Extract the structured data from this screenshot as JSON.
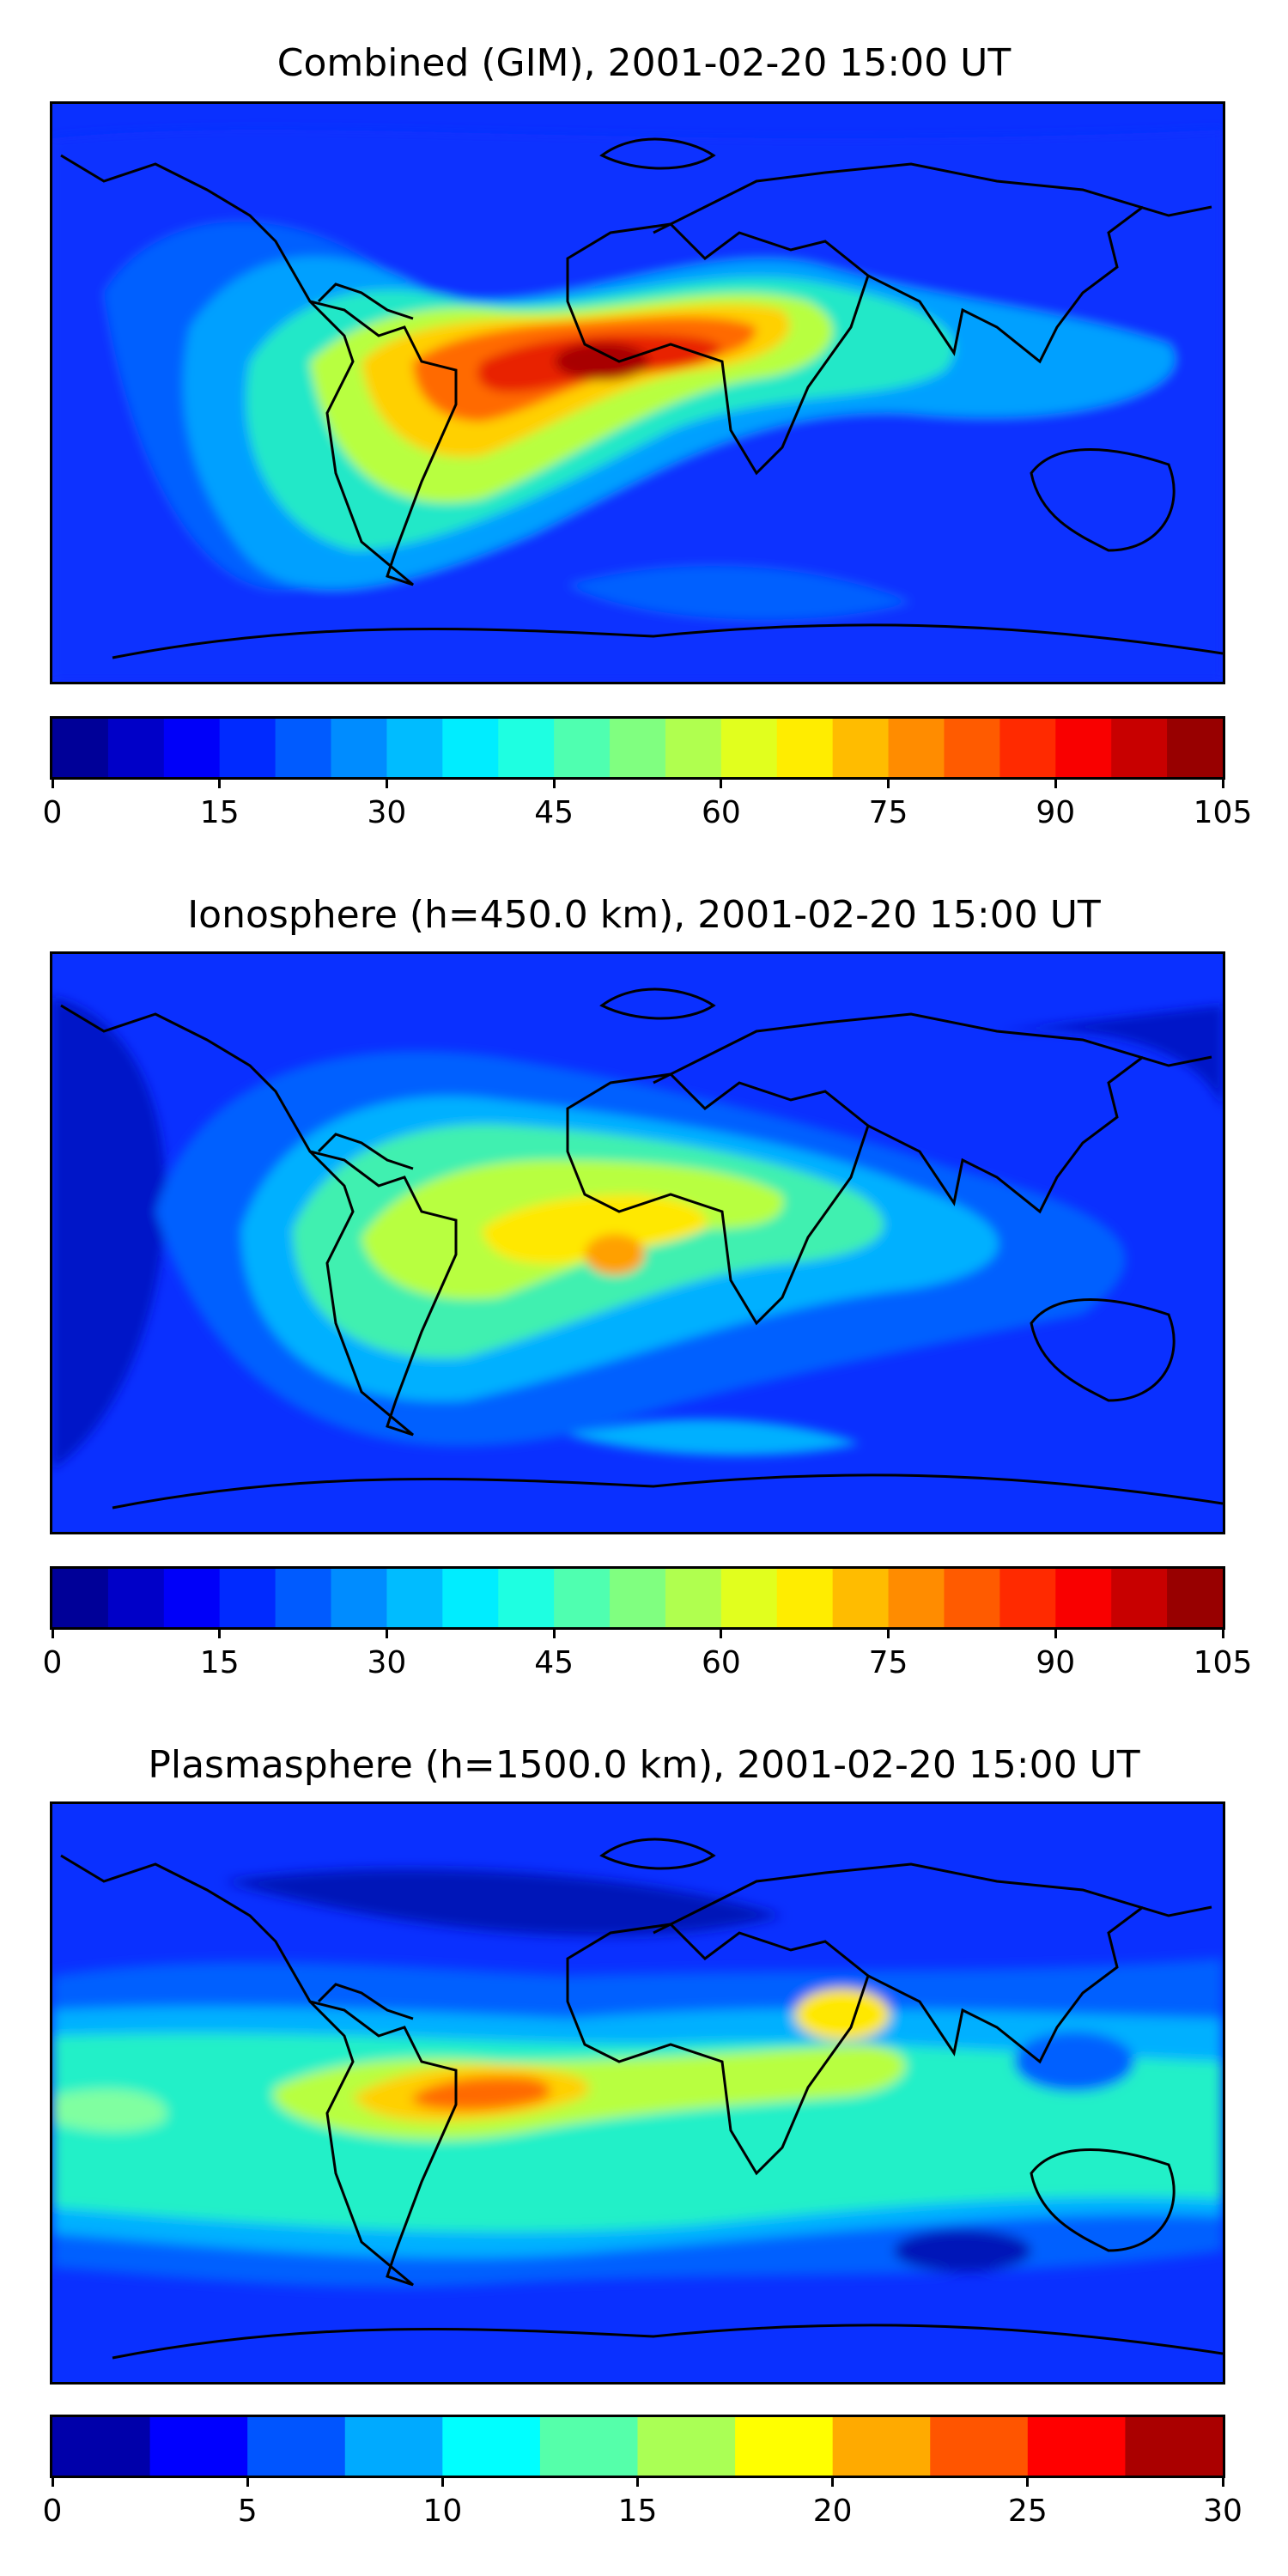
{
  "panels": [
    {
      "title": "Combined (GIM), 2001-02-20 15:00 UT",
      "colorbar": {
        "min": 0,
        "max": 105,
        "step": 5,
        "ticks": [
          "0",
          "15",
          "30",
          "45",
          "60",
          "75",
          "90",
          "105"
        ]
      }
    },
    {
      "title": "Ionosphere  (h=450.0 km), 2001-02-20 15:00 UT",
      "colorbar": {
        "min": 0,
        "max": 105,
        "step": 5,
        "ticks": [
          "0",
          "15",
          "30",
          "45",
          "60",
          "75",
          "90",
          "105"
        ]
      }
    },
    {
      "title": "Plasmasphere (h=1500.0 km), 2001-02-20 15:00 UT",
      "colorbar": {
        "min": 0,
        "max": 30,
        "step": 2.5,
        "ticks": [
          "0",
          "5",
          "10",
          "15",
          "20",
          "25",
          "30"
        ]
      }
    }
  ],
  "chart_data": [
    {
      "type": "heatmap",
      "title": "Combined (GIM), 2001-02-20 15:00 UT",
      "colormap": "jet",
      "levels": [
        0,
        5,
        10,
        15,
        20,
        25,
        30,
        35,
        40,
        45,
        50,
        55,
        60,
        65,
        70,
        75,
        80,
        85,
        90,
        95,
        100,
        105
      ],
      "colorbar_ticks": [
        0,
        15,
        30,
        45,
        60,
        75,
        90,
        105
      ],
      "features": [
        {
          "description": "equatorial anomaly maximum",
          "lon": -25,
          "lat": -5,
          "value": 100
        },
        {
          "description": "crest over Africa",
          "lon": 20,
          "lat": 0,
          "value": 88
        },
        {
          "description": "band over Indian Ocean / SE Asia",
          "lon": 90,
          "lat": 0,
          "value": 50
        },
        {
          "description": "night-side minimum",
          "lon": -160,
          "lat": 30,
          "value": 12
        }
      ]
    },
    {
      "type": "heatmap",
      "title": "Ionosphere  (h=450.0 km), 2001-02-20 15:00 UT",
      "colormap": "jet",
      "levels": [
        0,
        5,
        10,
        15,
        20,
        25,
        30,
        35,
        40,
        45,
        50,
        55,
        60,
        65,
        70,
        75,
        80,
        85,
        90,
        95,
        100,
        105
      ],
      "colorbar_ticks": [
        0,
        15,
        30,
        45,
        60,
        75,
        90,
        105
      ],
      "features": [
        {
          "description": "maximum over West Africa",
          "lon": 5,
          "lat": -5,
          "value": 77
        },
        {
          "description": "crest over South America / Africa",
          "lon": -20,
          "lat": 0,
          "value": 65
        },
        {
          "description": "night-side minimum",
          "lon": -170,
          "lat": 20,
          "value": 8
        }
      ]
    },
    {
      "type": "heatmap",
      "title": "Plasmasphere (h=1500.0 km), 2001-02-20 15:00 UT",
      "colormap": "jet",
      "levels": [
        0,
        2.5,
        5,
        7.5,
        10,
        12.5,
        15,
        17.5,
        20,
        22.5,
        25,
        27.5,
        30
      ],
      "colorbar_ticks": [
        0,
        5,
        10,
        15,
        20,
        25,
        30
      ],
      "features": [
        {
          "description": "maximum over Brazil",
          "lon": -50,
          "lat": -10,
          "value": 24
        },
        {
          "description": "secondary band over Africa",
          "lon": 20,
          "lat": -5,
          "value": 20
        },
        {
          "description": "high-latitude minimum",
          "lon": -40,
          "lat": 55,
          "value": 1
        }
      ]
    }
  ]
}
